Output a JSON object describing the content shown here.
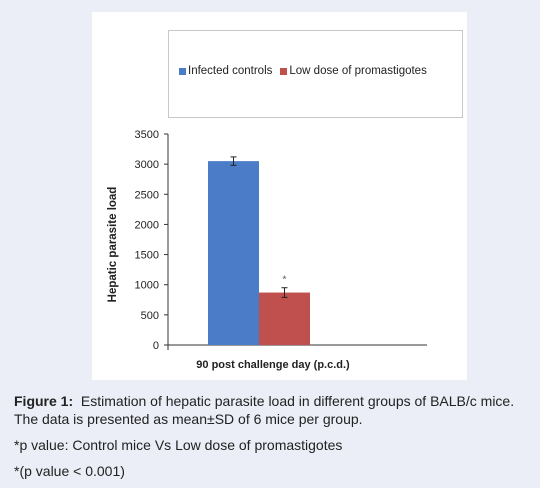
{
  "chart_data": {
    "type": "bar",
    "categories": [
      "90 post challenge day (p.c.d.)"
    ],
    "series": [
      {
        "name": "Infected controls",
        "values": [
          3050
        ],
        "error": [
          70
        ],
        "color": "#4a7cc7",
        "annotation": ""
      },
      {
        "name": "Low dose of promastigotes",
        "values": [
          870
        ],
        "error": [
          80
        ],
        "color": "#c0504d",
        "annotation": "*"
      }
    ],
    "xlabel": "90 post challenge day (p.c.d.)",
    "ylabel": "Hepatic parasite load",
    "ylim": [
      0,
      3500
    ],
    "yticks": [
      "0",
      "500",
      "1000",
      "1500",
      "2000",
      "2500",
      "3000",
      "3500"
    ],
    "grid": false,
    "legend_position": "top"
  },
  "caption": {
    "label": "Figure 1:",
    "text": "Estimation of hepatic parasite load in different groups of BALB/c mice. The data is presented as mean±SD of 6 mice per group.",
    "note1": "*p value: Control mice Vs Low dose of promastigotes",
    "note2": "*(p value < 0.001)"
  }
}
